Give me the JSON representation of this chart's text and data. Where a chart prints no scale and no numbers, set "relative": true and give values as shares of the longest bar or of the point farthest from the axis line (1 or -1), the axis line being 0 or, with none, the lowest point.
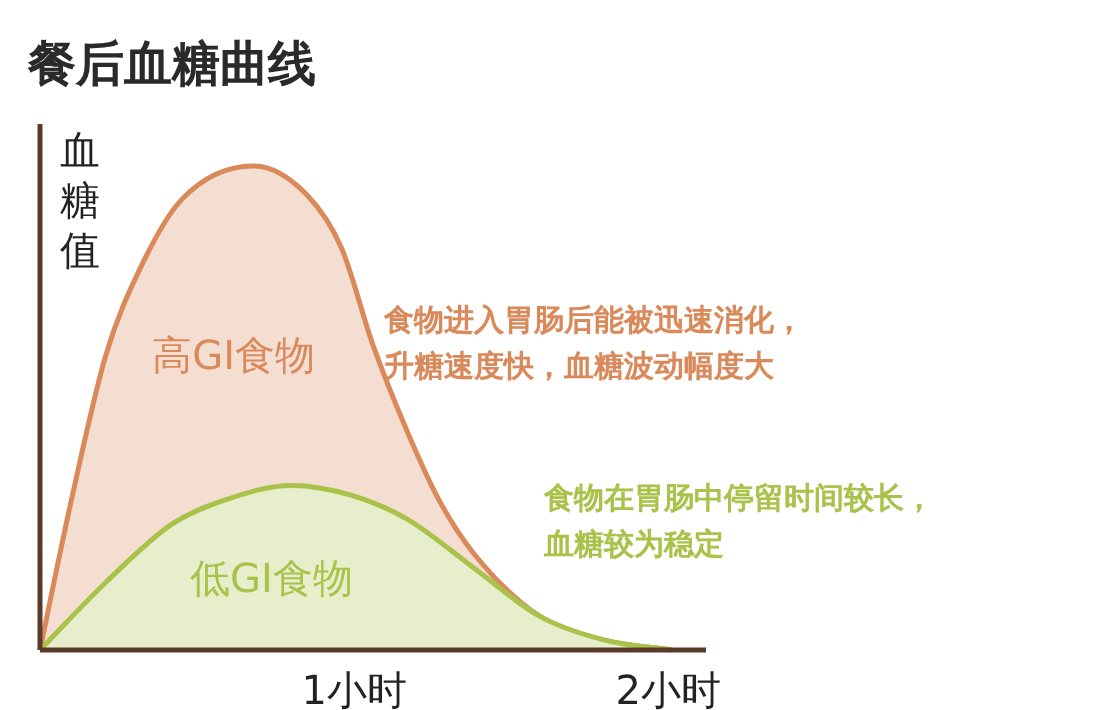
{
  "chart_data": {
    "type": "area",
    "title": "餐后血糖曲线",
    "ylabel": "血糖值",
    "relative": true,
    "xlim": [
      0,
      2.12
    ],
    "xticks": [
      {
        "value": 1,
        "label": "1小时"
      },
      {
        "value": 2,
        "label": "2小时"
      }
    ],
    "grid": false,
    "series": [
      {
        "name": "高GI食物",
        "color": "#d9895a",
        "x": [
          0,
          0.1,
          0.21,
          0.32,
          0.45,
          0.68,
          0.85,
          0.96,
          1.06,
          1.17,
          1.27,
          1.38,
          1.59,
          1.8,
          2.01
        ],
        "values": [
          0,
          0.31,
          0.61,
          0.79,
          0.93,
          1,
          0.94,
          0.83,
          0.63,
          0.45,
          0.31,
          0.2,
          0.07,
          0.02,
          0
        ]
      },
      {
        "name": "低GI食物",
        "color": "#a9c24a",
        "x": [
          0,
          0.21,
          0.42,
          0.59,
          0.8,
          0.99,
          1.17,
          1.38,
          1.59,
          1.8,
          2.01
        ],
        "values": [
          0,
          0.14,
          0.26,
          0.31,
          0.34,
          0.32,
          0.27,
          0.17,
          0.07,
          0.02,
          0
        ]
      }
    ],
    "annotations": [
      "食物进入胃肠后能被迅速消化，升糖速度快，血糖波动幅度大",
      "食物在胃肠中停留时间较长，血糖较为稳定"
    ]
  }
}
